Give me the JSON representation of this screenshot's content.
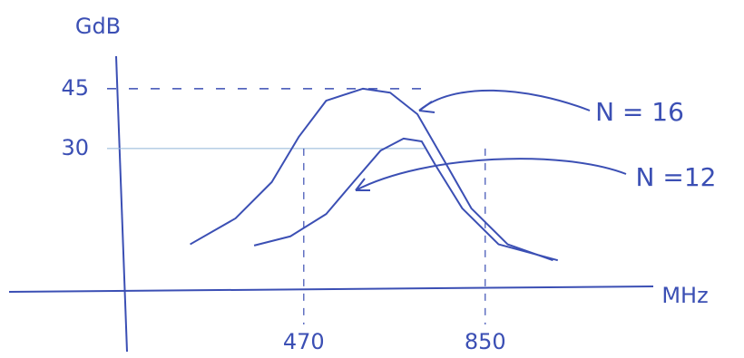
{
  "chart_data": {
    "type": "line",
    "y_label": "GdB",
    "x_label": "MHz",
    "xlim": [
      96,
      1202
    ],
    "ylim": [
      -5,
      52
    ],
    "xticks": [
      470,
      850
    ],
    "yticks": [
      30,
      45
    ],
    "series": [
      {
        "name": "N = 16",
        "color": "#3b4fb4",
        "x": [
          232,
          327,
          403,
          460,
          517,
          594,
          651,
          708,
          764,
          821,
          897,
          992
        ],
        "values": [
          6,
          12.5,
          21.6,
          33,
          42,
          45,
          44,
          38.6,
          27,
          15,
          6,
          2
        ]
      },
      {
        "name": "N =12",
        "color": "#3b4fb4",
        "x": [
          366,
          442,
          517,
          574,
          631,
          679,
          717,
          745,
          802,
          878,
          1002
        ],
        "values": [
          5.7,
          8,
          13.6,
          21.6,
          29.5,
          32.5,
          31.8,
          26,
          15,
          6,
          2
        ]
      }
    ]
  }
}
